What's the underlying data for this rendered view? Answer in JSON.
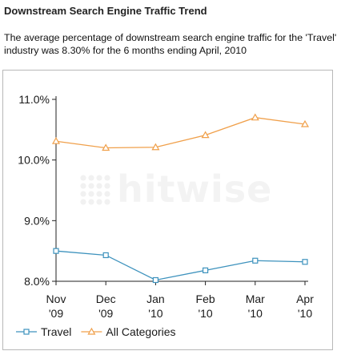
{
  "header": {
    "title": "Downstream Search Engine Traffic Trend",
    "description": "The average percentage of downstream search engine traffic for the 'Travel' industry was 8.30% for the 6 months ending April, 2010"
  },
  "watermark": {
    "text": "hitwise"
  },
  "chart_data": {
    "type": "line",
    "categories": [
      [
        "Nov",
        "'09"
      ],
      [
        "Dec",
        "'09"
      ],
      [
        "Jan",
        "'10"
      ],
      [
        "Feb",
        "'10"
      ],
      [
        "Mar",
        "'10"
      ],
      [
        "Apr",
        "'10"
      ]
    ],
    "y_ticks": [
      {
        "value": 8.0,
        "label": "8.0%"
      },
      {
        "value": 9.0,
        "label": "9.0%"
      },
      {
        "value": 10.0,
        "label": "10.0%"
      },
      {
        "value": 11.0,
        "label": "11.0%"
      }
    ],
    "ylim": [
      8.0,
      11.0
    ],
    "grid": false,
    "legend_position": "bottom-left",
    "series": [
      {
        "name": "Travel",
        "color": "#3d92bd",
        "marker": "square",
        "values": [
          8.5,
          8.43,
          8.02,
          8.18,
          8.34,
          8.32
        ]
      },
      {
        "name": "All Categories",
        "color": "#f0a04b",
        "marker": "triangle",
        "values": [
          10.31,
          10.2,
          10.21,
          10.41,
          10.7,
          10.59
        ]
      }
    ]
  }
}
